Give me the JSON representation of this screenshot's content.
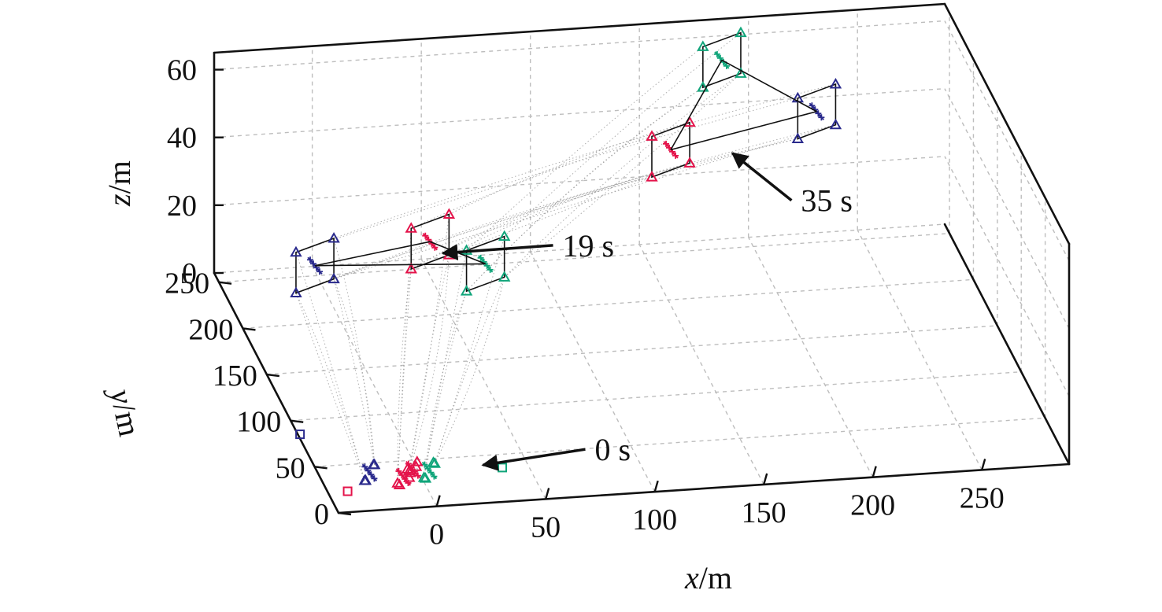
{
  "chart_data": {
    "type": "scatter",
    "projection": "3d",
    "title": "",
    "axes": {
      "x": {
        "label_var": "x",
        "label_unit": "/m",
        "ticks": [
          "0",
          "50",
          "100",
          "150",
          "200",
          "250"
        ],
        "range": [
          -45,
          290
        ]
      },
      "y": {
        "label_var": "y",
        "label_unit": "/m",
        "ticks": [
          "0",
          "50",
          "100",
          "150",
          "200",
          "250"
        ],
        "range": [
          0,
          260
        ]
      },
      "z": {
        "label_var": "z",
        "label_unit": "/m",
        "ticks": [
          "0",
          "20",
          "40",
          "60"
        ],
        "range": [
          0,
          65
        ]
      }
    },
    "grid": true,
    "annotations": [
      {
        "text": "0 s",
        "at": [
          30,
          40,
          0
        ]
      },
      {
        "text": "19 s",
        "at": [
          50,
          215,
          14
        ]
      },
      {
        "text": "35 s",
        "at": [
          185,
          225,
          35
        ]
      }
    ],
    "colors": {
      "red": "#e4134a",
      "blue": "#2a2a8c",
      "green": "#10a57a",
      "line": "#111111",
      "grid": "#bdbdbd",
      "trail": "#9a9a9a"
    },
    "formations": [
      {
        "time": "0 s",
        "groups": [
          {
            "color": "blue",
            "center": [
              -22,
              40,
              0
            ],
            "half": [
              4,
              8
            ],
            "z_half": 0
          },
          {
            "color": "red",
            "center": [
              -8,
              33,
              0
            ],
            "half": [
              4,
              6
            ],
            "z_half": 0
          },
          {
            "color": "green",
            "center": [
              5,
              38,
              0
            ],
            "half": [
              4,
              7
            ],
            "z_half": 0
          },
          {
            "color": "red",
            "center": [
              -2,
              40,
              0
            ],
            "half": [
              2,
              3
            ],
            "z_half": 0
          }
        ],
        "links": false,
        "markers": [
          {
            "color": "blue",
            "pos": [
              -44,
              85,
              0
            ]
          },
          {
            "color": "red",
            "pos": [
              -36,
              22,
              0
            ]
          },
          {
            "color": "green",
            "pos": [
              38,
              36,
              0
            ]
          }
        ]
      },
      {
        "time": "19 s",
        "groups": [
          {
            "color": "blue",
            "center": [
              -8,
              218,
              12
            ],
            "half": [
              10,
              6
            ],
            "z_half": 6
          },
          {
            "color": "red",
            "center": [
              47,
              228,
              14
            ],
            "half": [
              10,
              6
            ],
            "z_half": 6
          },
          {
            "color": "green",
            "center": [
              68,
              208,
              12
            ],
            "half": [
              10,
              6
            ],
            "z_half": 6
          }
        ],
        "links": true
      },
      {
        "time": "35 s",
        "groups": [
          {
            "color": "red",
            "center": [
              160,
              240,
              33
            ],
            "half": [
              10,
              6
            ],
            "z_half": 6
          },
          {
            "color": "green",
            "center": [
              190,
              270,
              50
            ],
            "half": [
              10,
              6
            ],
            "z_half": 6
          },
          {
            "color": "blue",
            "center": [
              228,
              245,
              40
            ],
            "half": [
              10,
              6
            ],
            "z_half": 6
          }
        ],
        "links": true
      }
    ]
  }
}
